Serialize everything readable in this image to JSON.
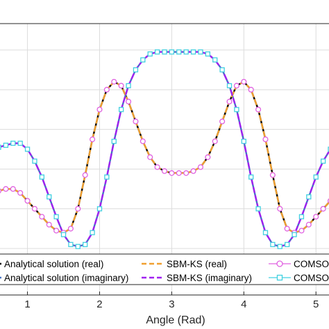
{
  "chart_data": {
    "type": "line",
    "title": "",
    "xlabel": "Angle (Rad)",
    "ylabel": "",
    "xlim": [
      0.6,
      5.2
    ],
    "ylim": [
      0,
      1
    ],
    "xticks": [
      1,
      2,
      3,
      4,
      5
    ],
    "yticks": [],
    "grid": true,
    "legend_position": "bottom",
    "series": [
      {
        "name": "Analytical solution (real)",
        "color": "#000000",
        "style": "solid",
        "x": [
          0.6,
          0.7,
          0.8,
          0.9,
          1.0,
          1.1,
          1.2,
          1.3,
          1.4,
          1.5,
          1.6,
          1.7,
          1.8,
          1.9,
          2.0,
          2.1,
          2.2,
          2.3,
          2.4,
          2.5,
          2.6,
          2.7,
          2.8,
          2.9,
          3.0,
          3.1,
          3.2,
          3.3,
          3.4,
          3.5,
          3.6,
          3.7,
          3.8,
          3.9,
          4.0,
          4.1,
          4.2,
          4.3,
          4.4,
          4.5,
          4.6,
          4.7,
          4.8,
          4.9,
          5.0,
          5.1,
          5.2
        ],
        "y": [
          0.29,
          0.3,
          0.3,
          0.28,
          0.24,
          0.2,
          0.16,
          0.12,
          0.09,
          0.08,
          0.1,
          0.2,
          0.37,
          0.55,
          0.7,
          0.8,
          0.84,
          0.82,
          0.74,
          0.64,
          0.54,
          0.46,
          0.41,
          0.39,
          0.38,
          0.38,
          0.38,
          0.39,
          0.41,
          0.46,
          0.54,
          0.64,
          0.74,
          0.82,
          0.84,
          0.8,
          0.7,
          0.55,
          0.37,
          0.2,
          0.1,
          0.08,
          0.09,
          0.12,
          0.16,
          0.2,
          0.24
        ]
      },
      {
        "name": "Analytical solution (imaginary)",
        "color": "#4472c4",
        "style": "solid",
        "x": [
          0.6,
          0.7,
          0.8,
          0.9,
          1.0,
          1.1,
          1.2,
          1.3,
          1.4,
          1.5,
          1.6,
          1.7,
          1.8,
          1.9,
          2.0,
          2.1,
          2.2,
          2.3,
          2.4,
          2.5,
          2.6,
          2.7,
          2.8,
          2.9,
          3.0,
          3.1,
          3.2,
          3.3,
          3.4,
          3.5,
          3.6,
          3.7,
          3.8,
          3.9,
          4.0,
          4.1,
          4.2,
          4.3,
          4.4,
          4.5,
          4.6,
          4.7,
          4.8,
          4.9,
          5.0,
          5.1,
          5.2
        ],
        "y": [
          0.51,
          0.52,
          0.53,
          0.53,
          0.5,
          0.44,
          0.36,
          0.26,
          0.16,
          0.07,
          0.02,
          0.01,
          0.02,
          0.08,
          0.2,
          0.36,
          0.54,
          0.7,
          0.82,
          0.9,
          0.95,
          0.98,
          0.99,
          0.99,
          0.99,
          0.99,
          0.99,
          0.99,
          0.99,
          0.98,
          0.95,
          0.9,
          0.82,
          0.7,
          0.54,
          0.36,
          0.2,
          0.08,
          0.02,
          0.01,
          0.02,
          0.07,
          0.16,
          0.26,
          0.36,
          0.44,
          0.5
        ]
      },
      {
        "name": "SBM-KS (real)",
        "color": "#f0a030",
        "style": "dashed",
        "x": [
          0.6,
          0.7,
          0.8,
          0.9,
          1.0,
          1.1,
          1.2,
          1.3,
          1.4,
          1.5,
          1.6,
          1.7,
          1.8,
          1.9,
          2.0,
          2.1,
          2.2,
          2.3,
          2.4,
          2.5,
          2.6,
          2.7,
          2.8,
          2.9,
          3.0,
          3.1,
          3.2,
          3.3,
          3.4,
          3.5,
          3.6,
          3.7,
          3.8,
          3.9,
          4.0,
          4.1,
          4.2,
          4.3,
          4.4,
          4.5,
          4.6,
          4.7,
          4.8,
          4.9,
          5.0,
          5.1,
          5.2
        ],
        "y": [
          0.29,
          0.3,
          0.3,
          0.28,
          0.24,
          0.2,
          0.16,
          0.12,
          0.09,
          0.08,
          0.1,
          0.2,
          0.37,
          0.55,
          0.7,
          0.8,
          0.84,
          0.82,
          0.74,
          0.64,
          0.54,
          0.46,
          0.41,
          0.39,
          0.38,
          0.38,
          0.38,
          0.39,
          0.41,
          0.46,
          0.54,
          0.64,
          0.74,
          0.82,
          0.84,
          0.8,
          0.7,
          0.55,
          0.37,
          0.2,
          0.1,
          0.08,
          0.09,
          0.12,
          0.16,
          0.2,
          0.24
        ]
      },
      {
        "name": "SBM-KS (imaginary)",
        "color": "#a020f0",
        "style": "dashed",
        "x": [
          0.6,
          0.7,
          0.8,
          0.9,
          1.0,
          1.1,
          1.2,
          1.3,
          1.4,
          1.5,
          1.6,
          1.7,
          1.8,
          1.9,
          2.0,
          2.1,
          2.2,
          2.3,
          2.4,
          2.5,
          2.6,
          2.7,
          2.8,
          2.9,
          3.0,
          3.1,
          3.2,
          3.3,
          3.4,
          3.5,
          3.6,
          3.7,
          3.8,
          3.9,
          4.0,
          4.1,
          4.2,
          4.3,
          4.4,
          4.5,
          4.6,
          4.7,
          4.8,
          4.9,
          5.0,
          5.1,
          5.2
        ],
        "y": [
          0.51,
          0.52,
          0.53,
          0.53,
          0.5,
          0.44,
          0.36,
          0.26,
          0.16,
          0.07,
          0.02,
          0.01,
          0.02,
          0.08,
          0.2,
          0.36,
          0.54,
          0.7,
          0.82,
          0.9,
          0.95,
          0.98,
          0.99,
          0.99,
          0.99,
          0.99,
          0.99,
          0.99,
          0.99,
          0.98,
          0.95,
          0.9,
          0.82,
          0.7,
          0.54,
          0.36,
          0.2,
          0.08,
          0.02,
          0.01,
          0.02,
          0.07,
          0.16,
          0.26,
          0.36,
          0.44,
          0.5
        ]
      },
      {
        "name": "COMSO",
        "color": "#e060e0",
        "style": "markers-circle",
        "x": [
          0.6,
          0.7,
          0.8,
          0.9,
          1.0,
          1.1,
          1.2,
          1.3,
          1.4,
          1.5,
          1.6,
          1.7,
          1.8,
          1.9,
          2.0,
          2.1,
          2.2,
          2.3,
          2.4,
          2.5,
          2.6,
          2.7,
          2.8,
          2.9,
          3.0,
          3.1,
          3.2,
          3.3,
          3.4,
          3.5,
          3.6,
          3.7,
          3.8,
          3.9,
          4.0,
          4.1,
          4.2,
          4.3,
          4.4,
          4.5,
          4.6,
          4.7,
          4.8,
          4.9,
          5.0,
          5.1,
          5.2
        ],
        "y": [
          0.29,
          0.3,
          0.3,
          0.28,
          0.24,
          0.2,
          0.16,
          0.12,
          0.09,
          0.08,
          0.1,
          0.2,
          0.37,
          0.55,
          0.7,
          0.8,
          0.84,
          0.82,
          0.74,
          0.64,
          0.54,
          0.46,
          0.41,
          0.39,
          0.38,
          0.38,
          0.38,
          0.39,
          0.41,
          0.46,
          0.54,
          0.64,
          0.74,
          0.82,
          0.84,
          0.8,
          0.7,
          0.55,
          0.37,
          0.2,
          0.1,
          0.08,
          0.09,
          0.12,
          0.16,
          0.2,
          0.24
        ]
      },
      {
        "name": "COMSO",
        "color": "#40d0e0",
        "style": "markers-square",
        "x": [
          0.6,
          0.7,
          0.8,
          0.9,
          1.0,
          1.1,
          1.2,
          1.3,
          1.4,
          1.5,
          1.6,
          1.7,
          1.8,
          1.9,
          2.0,
          2.1,
          2.2,
          2.3,
          2.4,
          2.5,
          2.6,
          2.7,
          2.8,
          2.9,
          3.0,
          3.1,
          3.2,
          3.3,
          3.4,
          3.5,
          3.6,
          3.7,
          3.8,
          3.9,
          4.0,
          4.1,
          4.2,
          4.3,
          4.4,
          4.5,
          4.6,
          4.7,
          4.8,
          4.9,
          5.0,
          5.1,
          5.2
        ],
        "y": [
          0.51,
          0.52,
          0.53,
          0.53,
          0.5,
          0.44,
          0.36,
          0.26,
          0.16,
          0.07,
          0.02,
          0.01,
          0.02,
          0.08,
          0.2,
          0.36,
          0.54,
          0.7,
          0.82,
          0.9,
          0.95,
          0.98,
          0.99,
          0.99,
          0.99,
          0.99,
          0.99,
          0.99,
          0.99,
          0.98,
          0.95,
          0.9,
          0.82,
          0.7,
          0.54,
          0.36,
          0.2,
          0.08,
          0.02,
          0.01,
          0.02,
          0.07,
          0.16,
          0.26,
          0.36,
          0.44,
          0.5
        ]
      }
    ]
  }
}
